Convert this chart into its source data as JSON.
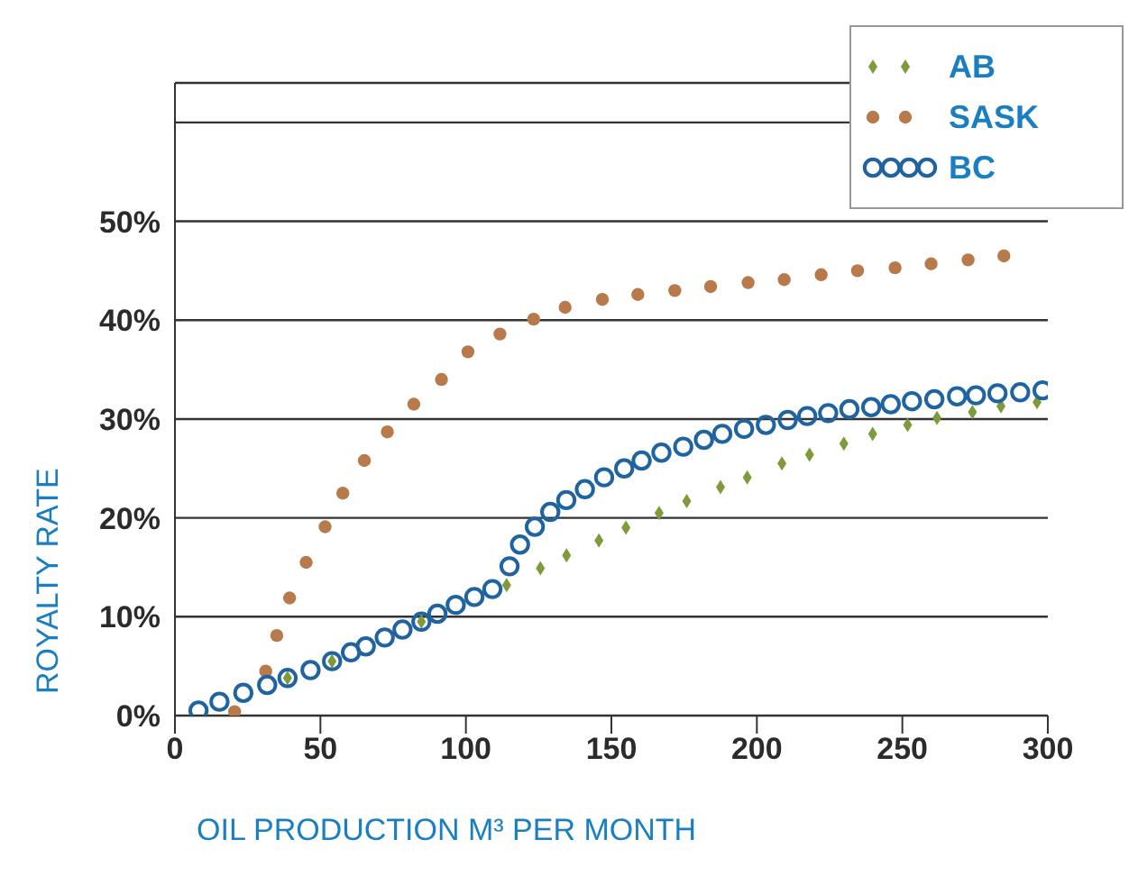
{
  "chart_data": {
    "type": "scatter",
    "xlabel": "OIL PRODUCTION M³ PER MONTH",
    "ylabel": "ROYALTY RATE",
    "xlim": [
      0,
      300
    ],
    "xticks": [
      0,
      50,
      100,
      150,
      200,
      250,
      300
    ],
    "ylim": [
      0,
      64
    ],
    "yticks": [
      {
        "value": 0,
        "label": "0%"
      },
      {
        "value": 10,
        "label": "10%"
      },
      {
        "value": 20,
        "label": "20%"
      },
      {
        "value": 30,
        "label": "30%"
      },
      {
        "value": 40,
        "label": "40%"
      },
      {
        "value": 50,
        "label": "50%"
      },
      {
        "value": 60,
        "label": null
      }
    ],
    "grid": "y",
    "legend": "top right",
    "marker": "circle",
    "series": [
      {
        "name": "AB",
        "color": "#7f9a3a",
        "marker": "diamond",
        "x": [
          38.7,
          54,
          84.7,
          114,
          125.6,
          134.6,
          145.7,
          155,
          166.4,
          175.9,
          187.5,
          196.7,
          208.6,
          218.1,
          229.9,
          239.8,
          251.8,
          261.9,
          274.1,
          283.9,
          296.3
        ],
        "values": [
          3.8,
          5.5,
          9.5,
          13.2,
          14.9,
          16.2,
          17.7,
          19.0,
          20.5,
          21.7,
          23.1,
          24.1,
          25.5,
          26.4,
          27.5,
          28.5,
          29.4,
          30.1,
          30.7,
          31.3,
          31.7
        ]
      },
      {
        "name": "SASK",
        "color": "#b87a4a",
        "marker": "circle",
        "x": [
          20.5,
          31.2,
          35,
          39.4,
          45.1,
          51.6,
          57.7,
          65.1,
          73,
          82.1,
          91.6,
          100.7,
          111.7,
          123.3,
          134.1,
          146.9,
          159.1,
          171.8,
          184.1,
          197,
          209.4,
          222.1,
          234.6,
          247.5,
          259.9,
          272.6,
          284.9
        ],
        "values": [
          0.4,
          4.5,
          8.1,
          11.9,
          15.5,
          19.1,
          22.5,
          25.8,
          28.7,
          31.5,
          34.0,
          36.8,
          38.6,
          40.1,
          41.3,
          42.1,
          42.6,
          43.0,
          43.4,
          43.8,
          44.1,
          44.6,
          45.0,
          45.3,
          45.7,
          46.1,
          46.5
        ]
      },
      {
        "name": "BC",
        "color": "#1f64a0",
        "x": [
          8.1,
          15.3,
          23.5,
          31.7,
          38.7,
          46.6,
          54,
          60.5,
          65.6,
          72.1,
          78.2,
          84.7,
          90.2,
          96.5,
          102.9,
          109.1,
          115,
          118.6,
          123.7,
          129,
          134.5,
          140.9,
          147.5,
          154.4,
          160.4,
          167.2,
          174.7,
          181.8,
          188.1,
          195.6,
          203.1,
          210.6,
          217.3,
          224.5,
          231.8,
          239.3,
          246,
          253.3,
          261,
          268.8,
          275.3,
          282.7,
          290.5,
          298.2
        ],
        "values": [
          0.5,
          1.4,
          2.3,
          3.1,
          3.8,
          4.6,
          5.5,
          6.4,
          7.0,
          7.9,
          8.7,
          9.5,
          10.3,
          11.2,
          12.0,
          12.8,
          15.1,
          17.3,
          19.1,
          20.6,
          21.8,
          22.9,
          24.1,
          25.0,
          25.8,
          26.6,
          27.2,
          27.9,
          28.5,
          29.0,
          29.4,
          29.9,
          30.3,
          30.6,
          31.0,
          31.2,
          31.5,
          31.8,
          32.0,
          32.3,
          32.4,
          32.6,
          32.7,
          32.9
        ]
      }
    ]
  }
}
